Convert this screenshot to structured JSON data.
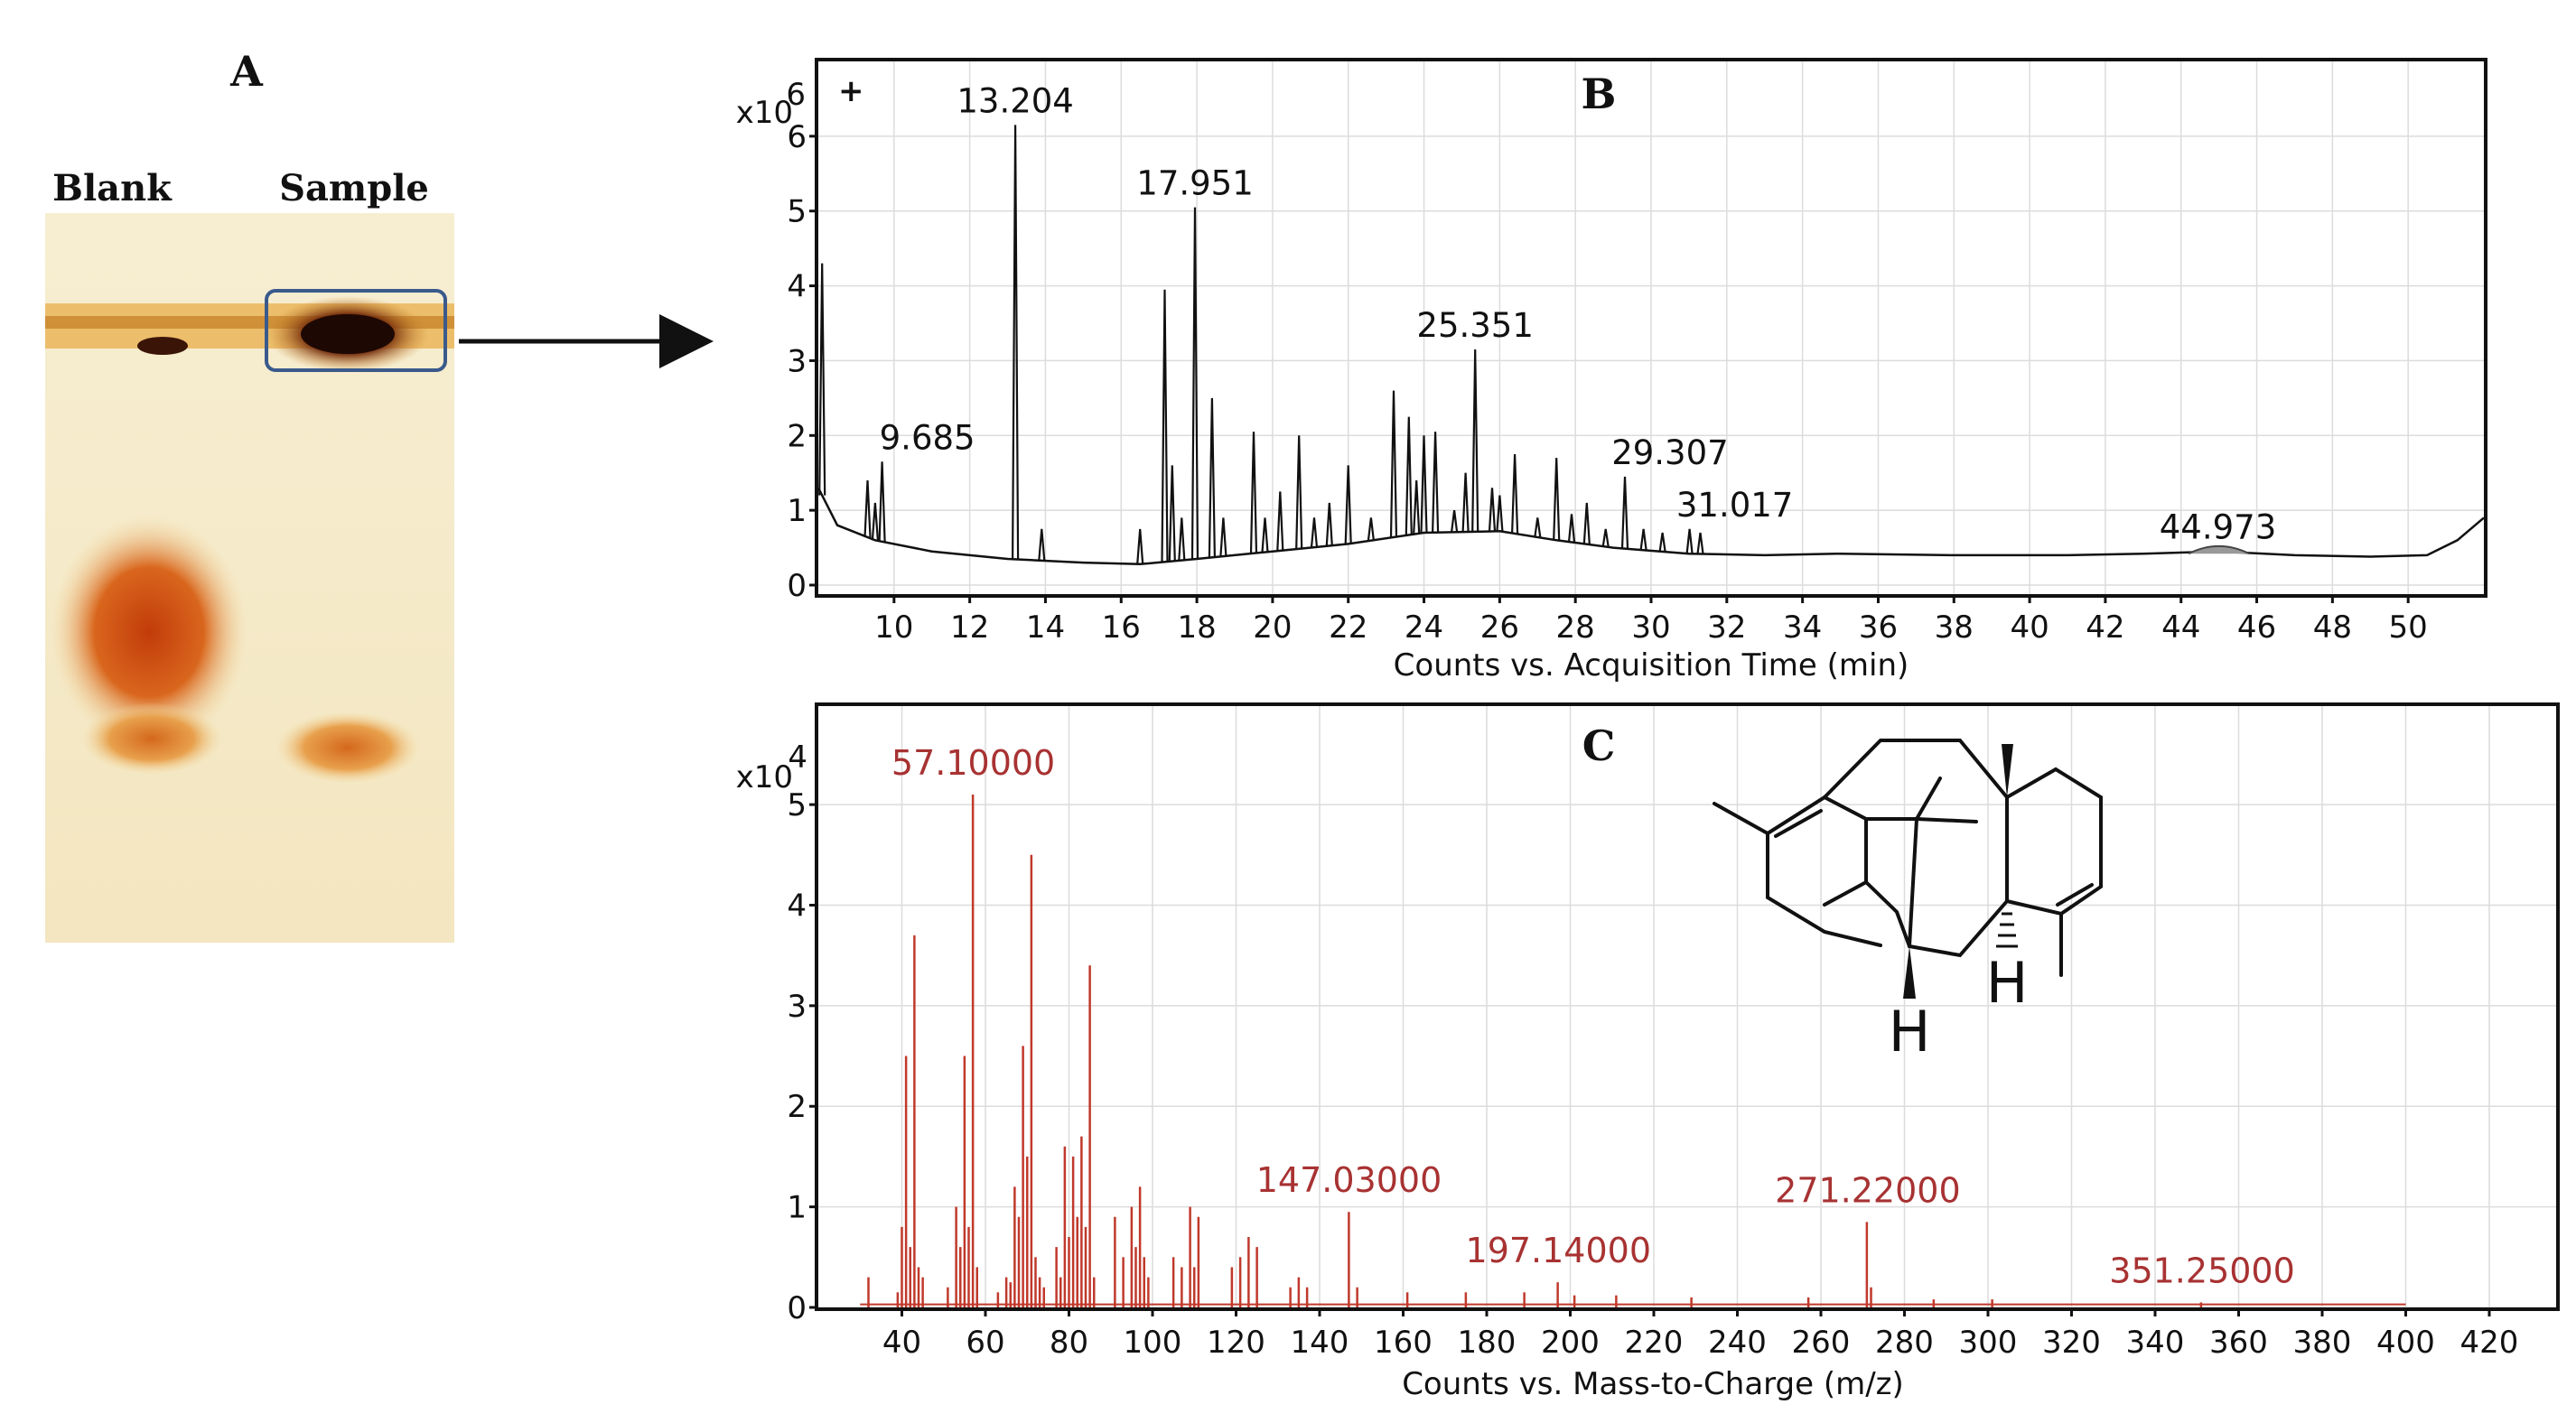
{
  "panel_a": {
    "letter": "A",
    "lane_labels": [
      "Blank",
      "Sample"
    ]
  },
  "chart_data": [
    {
      "panel": "B",
      "type": "line",
      "xlabel": "Counts vs. Acquisition Time (min)",
      "ylabel": "",
      "y_multiplier": "x10",
      "y_exponent": "6",
      "corner_mark": "+",
      "xlim": [
        8.0,
        52.0
      ],
      "ylim": [
        0,
        7
      ],
      "xticks": [
        10,
        12,
        14,
        16,
        18,
        20,
        22,
        24,
        26,
        28,
        30,
        32,
        34,
        36,
        38,
        40,
        42,
        44,
        46,
        48,
        50
      ],
      "yticks": [
        0,
        1,
        2,
        3,
        4,
        5,
        6
      ],
      "grid": true,
      "baseline": [
        [
          8.0,
          1.3
        ],
        [
          8.5,
          0.8
        ],
        [
          9.5,
          0.6
        ],
        [
          11,
          0.45
        ],
        [
          13,
          0.35
        ],
        [
          15,
          0.3
        ],
        [
          16.5,
          0.28
        ],
        [
          18,
          0.35
        ],
        [
          20,
          0.45
        ],
        [
          22,
          0.55
        ],
        [
          24,
          0.7
        ],
        [
          26,
          0.72
        ],
        [
          27.5,
          0.6
        ],
        [
          29,
          0.5
        ],
        [
          31,
          0.42
        ],
        [
          33,
          0.4
        ],
        [
          35,
          0.42
        ],
        [
          38,
          0.4
        ],
        [
          41,
          0.4
        ],
        [
          43,
          0.42
        ],
        [
          45,
          0.45
        ],
        [
          47,
          0.4
        ],
        [
          49,
          0.38
        ],
        [
          50.5,
          0.4
        ],
        [
          51.3,
          0.6
        ],
        [
          52,
          0.9
        ]
      ],
      "peaks": [
        {
          "x": 8.1,
          "y": 4.3
        },
        {
          "x": 9.3,
          "y": 1.4
        },
        {
          "x": 9.5,
          "y": 1.1
        },
        {
          "x": 9.685,
          "y": 1.65
        },
        {
          "x": 13.204,
          "y": 6.15
        },
        {
          "x": 13.9,
          "y": 0.75
        },
        {
          "x": 16.5,
          "y": 0.75
        },
        {
          "x": 17.15,
          "y": 3.95
        },
        {
          "x": 17.35,
          "y": 1.6
        },
        {
          "x": 17.6,
          "y": 0.9
        },
        {
          "x": 17.951,
          "y": 5.05
        },
        {
          "x": 18.4,
          "y": 2.5
        },
        {
          "x": 18.7,
          "y": 0.9
        },
        {
          "x": 19.5,
          "y": 2.05
        },
        {
          "x": 19.8,
          "y": 0.9
        },
        {
          "x": 20.2,
          "y": 1.25
        },
        {
          "x": 20.7,
          "y": 2.0
        },
        {
          "x": 21.1,
          "y": 0.9
        },
        {
          "x": 21.5,
          "y": 1.1
        },
        {
          "x": 22.0,
          "y": 1.6
        },
        {
          "x": 22.6,
          "y": 0.9
        },
        {
          "x": 23.2,
          "y": 2.6
        },
        {
          "x": 23.6,
          "y": 2.25
        },
        {
          "x": 23.8,
          "y": 1.4
        },
        {
          "x": 24.0,
          "y": 2.0
        },
        {
          "x": 24.3,
          "y": 2.05
        },
        {
          "x": 24.8,
          "y": 1.0
        },
        {
          "x": 25.1,
          "y": 1.5
        },
        {
          "x": 25.351,
          "y": 3.15
        },
        {
          "x": 25.8,
          "y": 1.3
        },
        {
          "x": 26.0,
          "y": 1.2
        },
        {
          "x": 26.4,
          "y": 1.75
        },
        {
          "x": 27.0,
          "y": 0.9
        },
        {
          "x": 27.5,
          "y": 1.7
        },
        {
          "x": 27.9,
          "y": 0.95
        },
        {
          "x": 28.3,
          "y": 1.1
        },
        {
          "x": 28.8,
          "y": 0.75
        },
        {
          "x": 29.307,
          "y": 1.45
        },
        {
          "x": 29.8,
          "y": 0.75
        },
        {
          "x": 30.3,
          "y": 0.7
        },
        {
          "x": 31.017,
          "y": 0.75
        },
        {
          "x": 31.3,
          "y": 0.7
        }
      ],
      "peak_labels": [
        {
          "x": 9.685,
          "y": 1.65,
          "text": "9.685"
        },
        {
          "x": 13.204,
          "y": 6.15,
          "text": "13.204"
        },
        {
          "x": 17.951,
          "y": 5.05,
          "text": "17.951"
        },
        {
          "x": 25.351,
          "y": 3.15,
          "text": "25.351"
        },
        {
          "x": 29.307,
          "y": 1.45,
          "text": "29.307"
        },
        {
          "x": 31.017,
          "y": 0.75,
          "text": "31.017"
        },
        {
          "x": 44.973,
          "y": 0.45,
          "text": "44.973"
        }
      ]
    },
    {
      "panel": "C",
      "type": "bar",
      "xlabel": "Counts vs. Mass-to-Charge (m/z)",
      "ylabel": "",
      "y_multiplier": "x10",
      "y_exponent": "4",
      "xlim": [
        20,
        436
      ],
      "ylim": [
        0,
        5.8
      ],
      "xticks": [
        40,
        60,
        80,
        100,
        120,
        140,
        160,
        180,
        200,
        220,
        240,
        260,
        280,
        300,
        320,
        340,
        360,
        380,
        400,
        420
      ],
      "yticks": [
        0,
        1,
        2,
        3,
        4,
        5
      ],
      "grid": true,
      "series": [
        {
          "color": "#c0392b",
          "points": [
            [
              32,
              0.3
            ],
            [
              39,
              0.15
            ],
            [
              40,
              0.8
            ],
            [
              41,
              2.5
            ],
            [
              42,
              0.6
            ],
            [
              43,
              3.7
            ],
            [
              44,
              0.4
            ],
            [
              45,
              0.3
            ],
            [
              51,
              0.2
            ],
            [
              53,
              1.0
            ],
            [
              54,
              0.6
            ],
            [
              55,
              2.5
            ],
            [
              56,
              0.8
            ],
            [
              57,
              5.1
            ],
            [
              58,
              0.4
            ],
            [
              63,
              0.15
            ],
            [
              65,
              0.3
            ],
            [
              66,
              0.25
            ],
            [
              67,
              1.2
            ],
            [
              68,
              0.9
            ],
            [
              69,
              2.6
            ],
            [
              70,
              1.5
            ],
            [
              71,
              4.5
            ],
            [
              72,
              0.5
            ],
            [
              73,
              0.3
            ],
            [
              74,
              0.2
            ],
            [
              77,
              0.6
            ],
            [
              78,
              0.3
            ],
            [
              79,
              1.6
            ],
            [
              80,
              0.7
            ],
            [
              81,
              1.5
            ],
            [
              82,
              0.9
            ],
            [
              83,
              1.7
            ],
            [
              84,
              0.8
            ],
            [
              85,
              3.4
            ],
            [
              86,
              0.3
            ],
            [
              91,
              0.9
            ],
            [
              93,
              0.5
            ],
            [
              95,
              1.0
            ],
            [
              96,
              0.6
            ],
            [
              97,
              1.2
            ],
            [
              98,
              0.5
            ],
            [
              99,
              0.3
            ],
            [
              105,
              0.5
            ],
            [
              107,
              0.4
            ],
            [
              109,
              1.0
            ],
            [
              110,
              0.4
            ],
            [
              111,
              0.9
            ],
            [
              119,
              0.4
            ],
            [
              121,
              0.5
            ],
            [
              123,
              0.7
            ],
            [
              125,
              0.6
            ],
            [
              133,
              0.2
            ],
            [
              135,
              0.3
            ],
            [
              137,
              0.2
            ],
            [
              147,
              0.95
            ],
            [
              149,
              0.2
            ],
            [
              161,
              0.15
            ],
            [
              175,
              0.15
            ],
            [
              189,
              0.15
            ],
            [
              197,
              0.25
            ],
            [
              201,
              0.12
            ],
            [
              211,
              0.12
            ],
            [
              229,
              0.1
            ],
            [
              257,
              0.1
            ],
            [
              271,
              0.85
            ],
            [
              272,
              0.2
            ],
            [
              287,
              0.08
            ],
            [
              301,
              0.08
            ],
            [
              351,
              0.05
            ]
          ]
        }
      ],
      "peak_labels": [
        {
          "x": 57.1,
          "y": 5.1,
          "text": "57.10000"
        },
        {
          "x": 147.03,
          "y": 0.95,
          "text": "147.03000"
        },
        {
          "x": 197.14,
          "y": 0.25,
          "text": "197.14000"
        },
        {
          "x": 271.22,
          "y": 0.85,
          "text": "271.22000"
        },
        {
          "x": 351.25,
          "y": 0.05,
          "text": "351.25000"
        }
      ],
      "structure_labels": [
        "H",
        "H"
      ]
    }
  ]
}
